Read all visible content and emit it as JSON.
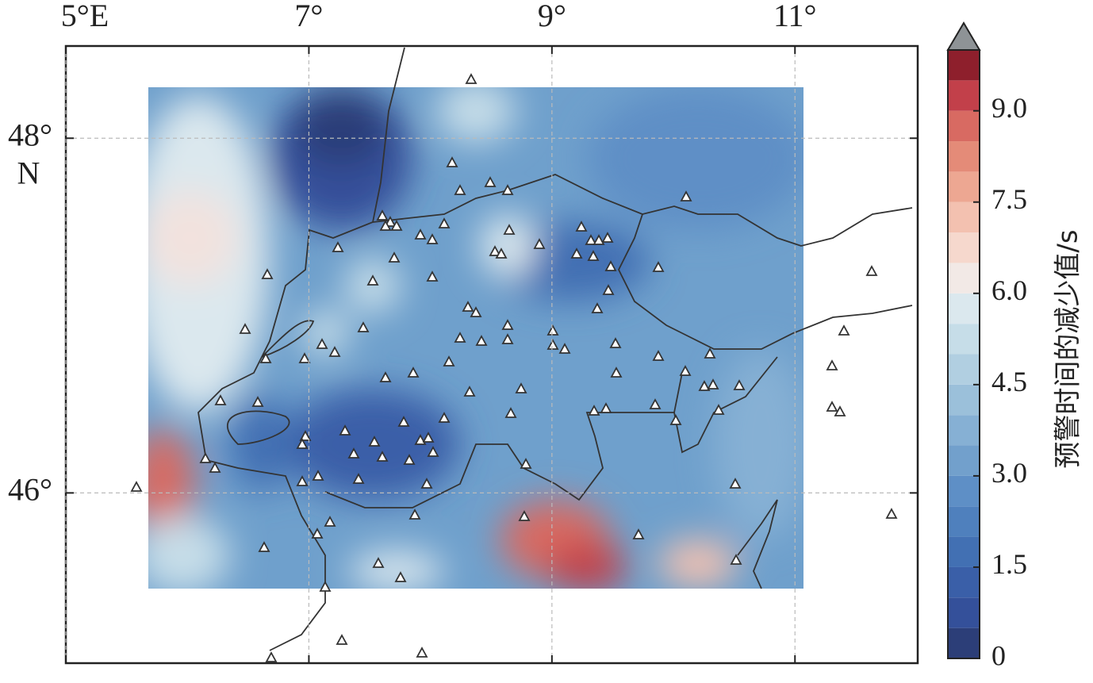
{
  "map": {
    "xlim": [
      5,
      12.01
    ],
    "ylim": [
      45.04,
      48.52
    ],
    "xticks": [
      {
        "value": 5,
        "label": "5°E"
      },
      {
        "value": 7,
        "label": "7°"
      },
      {
        "value": 9,
        "label": "9°"
      },
      {
        "value": 11,
        "label": "11°"
      }
    ],
    "yticks": [
      {
        "value": 48,
        "label": "48°"
      },
      {
        "value": 46,
        "label": "46°"
      }
    ],
    "lat_unit": "N"
  },
  "colorbar": {
    "label": "预警时间的减少值/s",
    "lim": [
      0,
      10
    ],
    "ticks": [
      0,
      {
        "value": 1.5,
        "label": "1.5"
      },
      {
        "value": 3,
        "label": "3.0"
      },
      {
        "value": 4.5,
        "label": "4.5"
      },
      {
        "value": 6,
        "label": "6.0"
      },
      {
        "value": 7.5,
        "label": "7.5"
      },
      {
        "value": 9,
        "label": "9.0"
      }
    ],
    "levels": [
      0,
      0.5,
      1,
      1.5,
      2,
      2.5,
      3,
      3.5,
      4,
      4.5,
      5,
      5.5,
      6,
      6.5,
      7,
      7.5,
      8,
      8.5,
      9,
      9.5,
      10
    ],
    "colors": [
      "#2c3e78",
      "#34509a",
      "#3a5fa8",
      "#4270b3",
      "#4f80bd",
      "#5e8fc6",
      "#72a0cc",
      "#86b0d4",
      "#9bc0da",
      "#b1cfe1",
      "#c6dde8",
      "#dbe8ee",
      "#f2e9e6",
      "#f6d8cd",
      "#f3c1b0",
      "#eda792",
      "#e48b78",
      "#d86a62",
      "#c2404a",
      "#8e1f2c"
    ],
    "extend_color": "#8e9396"
  }
}
